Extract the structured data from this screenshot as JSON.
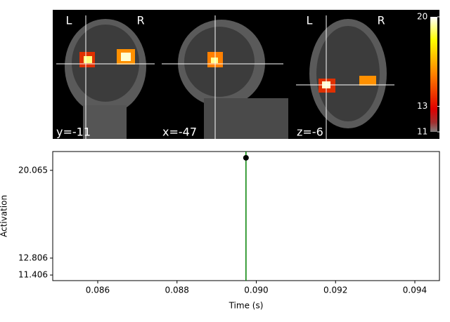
{
  "slices": [
    {
      "left": "L",
      "right": "R",
      "coord": "y=-11"
    },
    {
      "coord": "x=-47"
    },
    {
      "left": "L",
      "right": "R",
      "coord": "z=-6"
    }
  ],
  "colorbar": {
    "lim": [
      11,
      20
    ],
    "ticks": [
      20,
      13,
      11
    ]
  },
  "chart_data": {
    "type": "line",
    "x_label": "Time (s)",
    "y_label": "Activation",
    "xlim": [
      0.084865,
      0.094621
    ],
    "ylim": [
      10.945,
      21.62
    ],
    "xticks": [
      0.086,
      0.088,
      {
        "value": 0.09,
        "label": "0.090"
      },
      0.092,
      0.094
    ],
    "yticks": [
      11.406,
      12.806,
      20.065
    ],
    "series": [
      {
        "color": "#008000",
        "marker_color": "#000000",
        "x": [
          0.08974
        ],
        "values": [
          21.1
        ]
      }
    ]
  }
}
